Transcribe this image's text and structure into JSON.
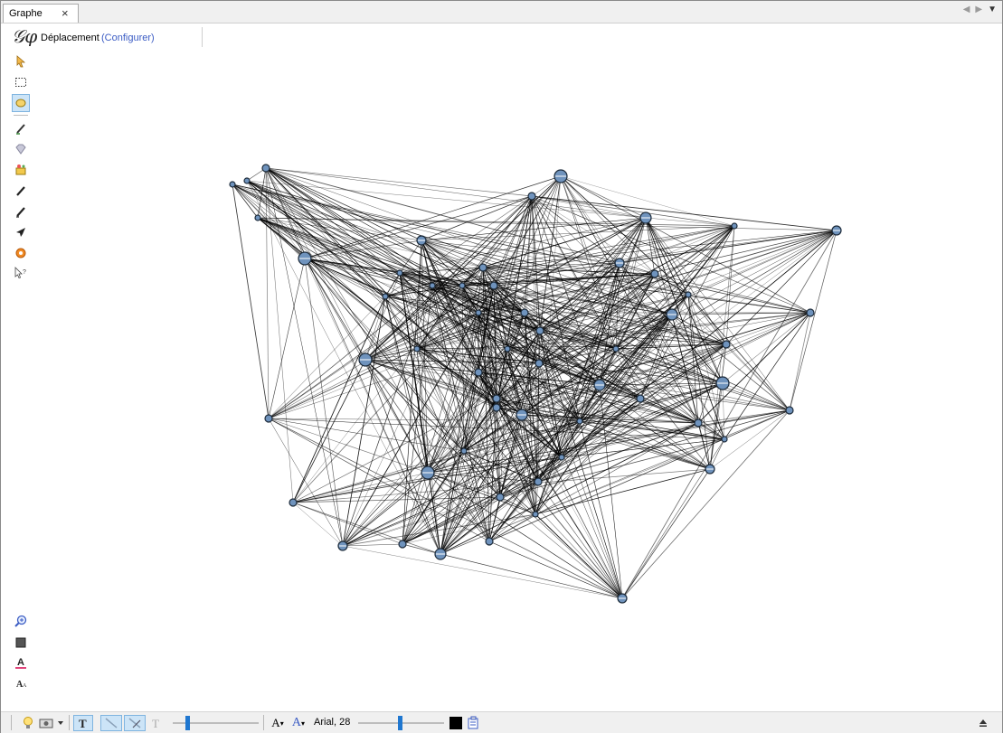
{
  "tab": {
    "label": "Graphe",
    "close": "×"
  },
  "header": {
    "logo": "𝒢φ",
    "mode_label": "Déplacement",
    "configure_link": "(Configurer)"
  },
  "left_toolbar": {
    "tools": [
      {
        "name": "select-arrow-icon",
        "glyph": "➤",
        "active": false
      },
      {
        "name": "rectangle-select-icon",
        "glyph": "⬚",
        "active": false
      },
      {
        "name": "lasso-select-icon",
        "glyph": "⬭",
        "active": true
      },
      {
        "name": "pencil-icon",
        "glyph": "✎",
        "active": false
      },
      {
        "name": "diamond-icon",
        "glyph": "◆",
        "active": false
      },
      {
        "name": "magic-wand-icon",
        "glyph": "✦",
        "active": false
      },
      {
        "name": "edge-pencil-icon",
        "glyph": "✎",
        "active": false
      },
      {
        "name": "node-pencil-icon",
        "glyph": "✎",
        "active": false
      },
      {
        "name": "airplane-icon",
        "glyph": "✈",
        "active": false
      },
      {
        "name": "gear-icon",
        "glyph": "✹",
        "active": false
      },
      {
        "name": "help-cursor-icon",
        "glyph": "⍰",
        "active": false
      }
    ],
    "bottom_tools": [
      {
        "name": "zoom-icon",
        "glyph": "⊕"
      },
      {
        "name": "background-color-icon",
        "glyph": "■"
      },
      {
        "name": "label-color-icon",
        "glyph": "A"
      },
      {
        "name": "label-size-icon",
        "glyph": "A"
      }
    ]
  },
  "bottom_toolbar": {
    "font_label": "Arial, 28",
    "text_size_decrease": "A",
    "text_size_increase": "A",
    "label_color": "#000000"
  },
  "colors": {
    "accent": "#1f77d0",
    "node": "#5a7fa8",
    "edge": "#000000"
  }
}
